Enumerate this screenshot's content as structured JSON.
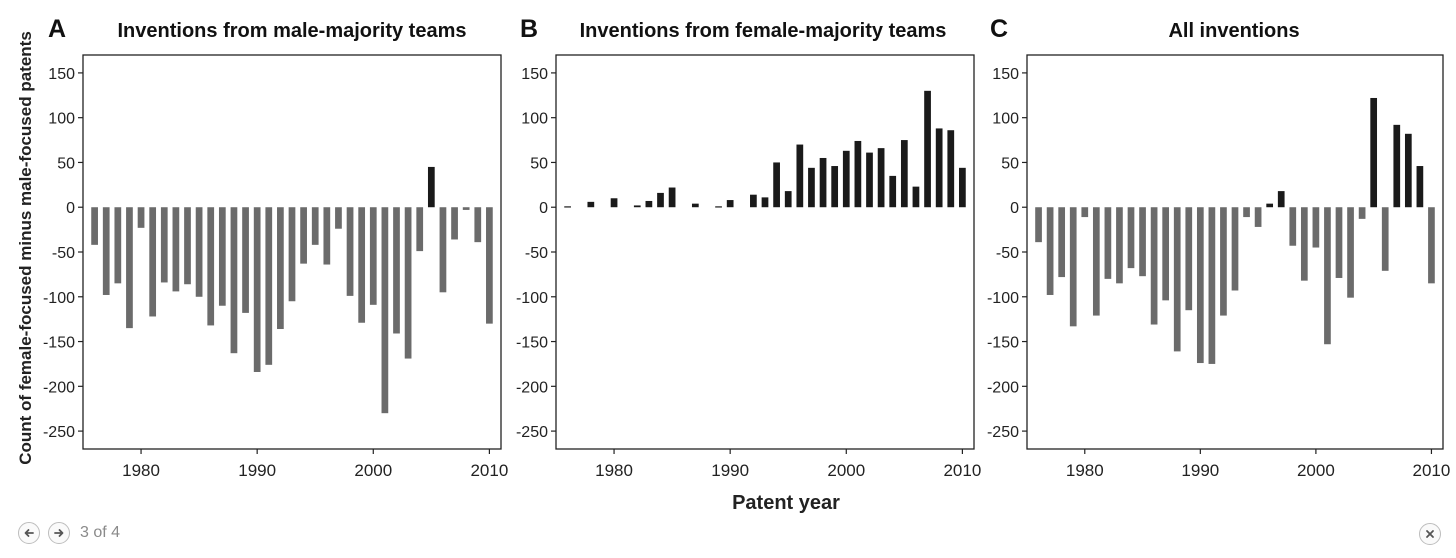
{
  "figure": {
    "ylabel": "Count of female-focused minus male-focused patents",
    "xlabel": "Patent year"
  },
  "colors": {
    "negative": "#6b6b6b",
    "positive": "#1a1a1a",
    "axis": "#222222"
  },
  "icons": {
    "prev": "arrow-left-icon",
    "next": "arrow-right-icon",
    "close": "close-icon"
  },
  "pager": {
    "counter": "3 of 4"
  },
  "chart_data": [
    {
      "type": "bar",
      "panel_letter": "A",
      "title": "Inventions from male-majority teams",
      "xlim": [
        1975,
        2011
      ],
      "ylim": [
        -270,
        170
      ],
      "xticks": [
        1980,
        1990,
        2000,
        2010
      ],
      "yticks": [
        150,
        100,
        50,
        0,
        -50,
        -100,
        -150,
        -200,
        -250
      ],
      "x": [
        1976,
        1977,
        1978,
        1979,
        1980,
        1981,
        1982,
        1983,
        1984,
        1985,
        1986,
        1987,
        1988,
        1989,
        1990,
        1991,
        1992,
        1993,
        1994,
        1995,
        1996,
        1997,
        1998,
        1999,
        2000,
        2001,
        2002,
        2003,
        2004,
        2005,
        2006,
        2007,
        2008,
        2009,
        2010
      ],
      "values": [
        -42,
        -98,
        -85,
        -135,
        -23,
        -122,
        -84,
        -94,
        -86,
        -100,
        -132,
        -110,
        -163,
        -118,
        -184,
        -176,
        -136,
        -105,
        -63,
        -42,
        -64,
        -24,
        -99,
        -129,
        -109,
        -230,
        -141,
        -169,
        -49,
        45,
        -95,
        -36,
        -3,
        -39,
        -130
      ]
    },
    {
      "type": "bar",
      "panel_letter": "B",
      "title": "Inventions from female-majority teams",
      "xlim": [
        1975,
        2011
      ],
      "ylim": [
        -270,
        170
      ],
      "xticks": [
        1980,
        1990,
        2000,
        2010
      ],
      "yticks": [
        150,
        100,
        50,
        0,
        -50,
        -100,
        -150,
        -200,
        -250
      ],
      "x": [
        1976,
        1977,
        1978,
        1979,
        1980,
        1981,
        1982,
        1983,
        1984,
        1985,
        1986,
        1987,
        1988,
        1989,
        1990,
        1991,
        1992,
        1993,
        1994,
        1995,
        1996,
        1997,
        1998,
        1999,
        2000,
        2001,
        2002,
        2003,
        2004,
        2005,
        2006,
        2007,
        2008,
        2009,
        2010
      ],
      "values": [
        1,
        0,
        6,
        0,
        10,
        0,
        2,
        7,
        16,
        22,
        0,
        4,
        0,
        1,
        8,
        0,
        14,
        11,
        50,
        18,
        70,
        44,
        55,
        46,
        63,
        74,
        61,
        66,
        35,
        75,
        23,
        130,
        88,
        86,
        44
      ]
    },
    {
      "type": "bar",
      "panel_letter": "C",
      "title": "All inventions",
      "xlim": [
        1975,
        2011
      ],
      "ylim": [
        -270,
        170
      ],
      "xticks": [
        1980,
        1990,
        2000,
        2010
      ],
      "yticks": [
        150,
        100,
        50,
        0,
        -50,
        -100,
        -150,
        -200,
        -250
      ],
      "x": [
        1976,
        1977,
        1978,
        1979,
        1980,
        1981,
        1982,
        1983,
        1984,
        1985,
        1986,
        1987,
        1988,
        1989,
        1990,
        1991,
        1992,
        1993,
        1994,
        1995,
        1996,
        1997,
        1998,
        1999,
        2000,
        2001,
        2002,
        2003,
        2004,
        2005,
        2006,
        2007,
        2008,
        2009,
        2010
      ],
      "values": [
        -39,
        -98,
        -78,
        -133,
        -11,
        -121,
        -80,
        -85,
        -68,
        -77,
        -131,
        -104,
        -161,
        -115,
        -174,
        -175,
        -121,
        -93,
        -11,
        -22,
        4,
        18,
        -43,
        -82,
        -45,
        -153,
        -79,
        -101,
        -13,
        122,
        -71,
        92,
        82,
        46,
        -85
      ]
    }
  ]
}
